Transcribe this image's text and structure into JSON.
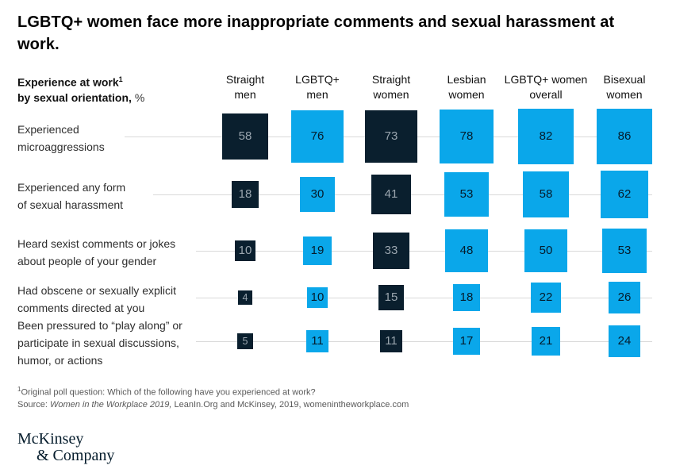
{
  "title": "LGBTQ+ women face more inappropriate comments and sexual harassment at\nwork.",
  "header": {
    "line1": "Experience at work",
    "line1_sup": "1",
    "line2": "by sexual orientation,",
    "unit": "%"
  },
  "chart_data": {
    "type": "heatmap",
    "subtype": "proportional-square-matrix",
    "unit": "%",
    "categories": [
      {
        "label": "Straight\nmen",
        "color_key": "dark"
      },
      {
        "label": "LGBTQ+\nmen",
        "color_key": "blue"
      },
      {
        "label": "Straight\nwomen",
        "color_key": "dark"
      },
      {
        "label": "Lesbian\nwomen",
        "color_key": "blue"
      },
      {
        "label": "LGBTQ+ women\noverall",
        "color_key": "blue"
      },
      {
        "label": "Bisexual\nwomen",
        "color_key": "blue"
      }
    ],
    "rows": [
      {
        "label": "Experienced\nmicroaggressions",
        "values": [
          58,
          76,
          73,
          78,
          82,
          86
        ]
      },
      {
        "label": "Experienced any form\nof sexual harassment",
        "values": [
          18,
          30,
          41,
          53,
          58,
          62
        ]
      },
      {
        "label": "Heard sexist comments or jokes\nabout people of your gender",
        "values": [
          10,
          19,
          33,
          48,
          50,
          53
        ]
      },
      {
        "label": "Had obscene or sexually explicit\ncomments directed at you",
        "values": [
          4,
          10,
          15,
          18,
          22,
          26
        ]
      },
      {
        "label": "Been pressured to “play along” or\nparticipate in sexual discussions,\nhumor, or actions",
        "values": [
          5,
          11,
          11,
          17,
          21,
          24
        ]
      }
    ],
    "colors": {
      "dark": "#0a1f2e",
      "blue": "#0aa7ea",
      "value_text_on_dark": "#9aa5ae",
      "value_text_on_blue": "#051c2c",
      "row_line": "#d9d9d9"
    },
    "layout": {
      "col_centers": [
        309,
        400,
        493,
        588,
        688,
        787
      ],
      "row_centers": [
        172,
        245,
        316,
        375,
        430
      ],
      "row_line_starts": [
        157,
        193,
        247,
        247,
        247
      ],
      "row_line_end": 822,
      "size_base": 4,
      "size_scale": 7.2,
      "legend": "none",
      "grid": "row-lines-only"
    }
  },
  "footnote": {
    "sup": "1",
    "text": "Original poll question: Which of the following have you experienced at work?"
  },
  "source": {
    "prefix": "Source: ",
    "italic": "Women in the Workplace 2019,",
    "rest": " LeanIn.Org and McKinsey, 2019, womenintheworkplace.com"
  },
  "logo": {
    "line1": "McKinsey",
    "line2": "& Company"
  }
}
